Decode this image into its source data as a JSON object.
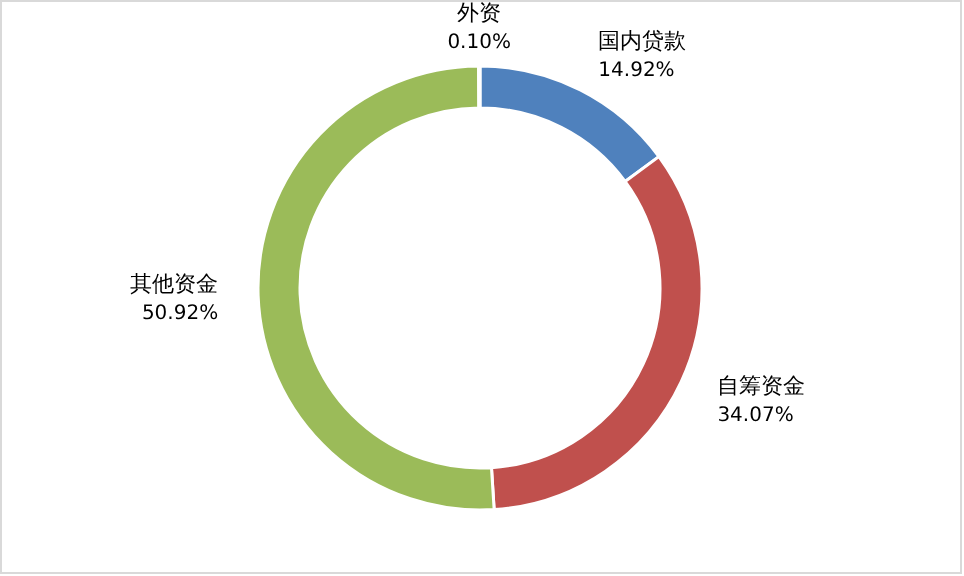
{
  "chart_data": {
    "type": "donut",
    "categories": [
      "国内贷款",
      "自筹资金",
      "其他资金",
      "外资"
    ],
    "values": [
      14.92,
      34.07,
      50.92,
      0.1
    ],
    "value_labels": [
      "14.92%",
      "34.07%",
      "50.92%",
      "0.10%"
    ],
    "colors": [
      "#4f81bd",
      "#c0504d",
      "#9bbb59",
      "#8064a2"
    ]
  }
}
